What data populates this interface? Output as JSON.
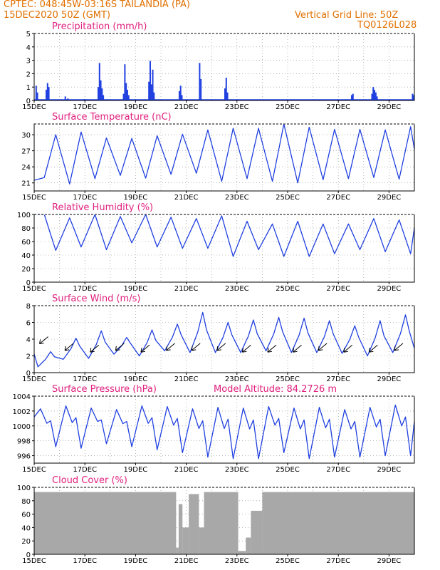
{
  "header": {
    "line1": "CPTEC:   048:45W-03:16S   TAILANDIA (PA)",
    "line2": "15DEC2020 50Z (GMT)",
    "grid_note": "Vertical Grid Line: 50Z",
    "code": "TQ0126L028"
  },
  "colors": {
    "header": "#e07000",
    "title": "#e0207e",
    "series": "#2040e0",
    "cloud": "#a8a8a8"
  },
  "x_labels": [
    "15DEC",
    "17DEC",
    "19DEC",
    "21DEC",
    "23DEC",
    "25DEC",
    "27DEC",
    "29DEC"
  ],
  "panels": {
    "precip": {
      "title": "Precipitation (mm/h)"
    },
    "temp": {
      "title": "Surface Temperature (nC)"
    },
    "rh": {
      "title": "Relative Humidity (%)"
    },
    "wind": {
      "title": "Surface Wind (m/s)"
    },
    "pres": {
      "title": "Surface Pressure (hPa)",
      "extra": "Model Altitude: 84.2726 m"
    },
    "cloud": {
      "title": "Cloud Cover (%)"
    }
  },
  "chart_data": [
    {
      "type": "bar",
      "title": "Precipitation (mm/h)",
      "ylim": [
        0,
        5
      ],
      "y_ticks": [
        0,
        1,
        2,
        3,
        4,
        5
      ],
      "x_range_days": [
        0,
        15
      ],
      "x": [
        0.05,
        0.1,
        0.45,
        0.5,
        0.55,
        1.2,
        1.3,
        1.95,
        2.5,
        2.55,
        2.6,
        2.65,
        2.7,
        3.5,
        3.55,
        3.6,
        3.65,
        3.7,
        4.5,
        4.55,
        4.6,
        4.65,
        4.7,
        5.7,
        5.75,
        5.8,
        6.5,
        6.55,
        7.5,
        7.55,
        7.6,
        12.5,
        12.55,
        13.3,
        13.35,
        13.4,
        13.45,
        13.5,
        14.9,
        14.95
      ],
      "values": [
        1.1,
        0.6,
        0.8,
        1.3,
        1.0,
        0.3,
        0.15,
        0.1,
        1.0,
        2.8,
        1.5,
        0.9,
        0.4,
        0.5,
        2.7,
        1.3,
        0.8,
        0.4,
        1.4,
        2.95,
        1.2,
        2.3,
        0.6,
        0.7,
        1.1,
        0.4,
        2.8,
        1.6,
        0.9,
        1.7,
        0.6,
        0.4,
        0.5,
        0.5,
        1.0,
        0.8,
        0.6,
        0.3,
        0.5,
        0.4
      ]
    },
    {
      "type": "line",
      "title": "Surface Temperature (nC)",
      "ylim": [
        19.5,
        32
      ],
      "y_ticks": [
        21,
        24,
        27,
        30
      ],
      "min": [
        22,
        20.8,
        21.8,
        22.4,
        21.9,
        22.6,
        22.8,
        21.3,
        21.8,
        21.3,
        21.0,
        21.6,
        21.8,
        22.0,
        21.7
      ],
      "max": [
        30.0,
        30.5,
        29.4,
        29.3,
        29.8,
        30.1,
        30.9,
        31.2,
        31.2,
        32.0,
        31.4,
        31.0,
        31.0,
        30.9,
        31.5
      ],
      "end_value": 27.3
    },
    {
      "type": "line",
      "title": "Relative Humidity (%)",
      "ylim": [
        0,
        100
      ],
      "y_ticks": [
        0,
        20,
        40,
        60,
        80,
        100
      ],
      "min": [
        47,
        52,
        48,
        58,
        52,
        50,
        50,
        38,
        48,
        38,
        38,
        42,
        48,
        45,
        42
      ],
      "max": [
        100,
        95,
        100,
        97,
        100,
        96,
        94,
        98,
        90,
        86,
        90,
        86,
        86,
        94,
        92
      ],
      "end_value": 80
    },
    {
      "type": "line",
      "title": "Surface Wind (m/s)",
      "ylim": [
        0,
        8
      ],
      "y_ticks": [
        0,
        2,
        4,
        6,
        8
      ],
      "min": [
        0.7,
        1.6,
        1.7,
        2.2,
        2.0,
        2.6,
        2.4,
        2.4,
        2.4,
        2.6,
        2.4,
        2.4,
        2.3,
        2.0,
        2.4
      ],
      "max": [
        2.5,
        4.1,
        5.0,
        4.2,
        5.1,
        5.8,
        7.2,
        6.0,
        6.3,
        6.6,
        6.5,
        6.2,
        5.6,
        6.2,
        6.9
      ],
      "end_value": 2.9,
      "arrow_y_values": [
        4.3,
        3.5,
        3.3,
        3.5,
        3.3,
        3.5,
        3.5,
        3.5,
        3.3,
        3.3,
        3.3,
        3.5,
        3.3,
        3.3,
        3.5
      ]
    },
    {
      "type": "line",
      "title": "Surface Pressure (hPa)",
      "ylim": [
        995,
        1004
      ],
      "y_ticks": [
        996,
        998,
        1000,
        1002,
        1004
      ],
      "max": [
        1002.3,
        1002.7,
        1002.4,
        1002.2,
        1002.7,
        1002.6,
        1002.3,
        1002.5,
        1002.4,
        1002.6,
        1002.4,
        1002.5,
        1002.2,
        1002.5,
        1002.8
      ],
      "min": [
        997.2,
        997.0,
        997.6,
        997.2,
        996.8,
        996.4,
        995.8,
        995.6,
        995.6,
        996.4,
        995.6,
        995.8,
        995.8,
        996.0,
        996.0
      ],
      "end_value": 1000.6
    },
    {
      "type": "bar",
      "title": "Cloud Cover (%)",
      "ylim": [
        0,
        100
      ],
      "y_ticks": [
        0,
        20,
        40,
        60,
        80,
        100
      ],
      "segments": [
        {
          "from": 0,
          "to": 5.6,
          "value": 93
        },
        {
          "from": 5.6,
          "to": 5.7,
          "value": 10
        },
        {
          "from": 5.7,
          "to": 5.85,
          "value": 75
        },
        {
          "from": 5.85,
          "to": 6.1,
          "value": 40
        },
        {
          "from": 6.1,
          "to": 6.5,
          "value": 90
        },
        {
          "from": 6.5,
          "to": 6.7,
          "value": 40
        },
        {
          "from": 6.7,
          "to": 8.05,
          "value": 93
        },
        {
          "from": 8.05,
          "to": 8.35,
          "value": 5
        },
        {
          "from": 8.35,
          "to": 8.55,
          "value": 25
        },
        {
          "from": 8.55,
          "to": 9.0,
          "value": 65
        },
        {
          "from": 9.0,
          "to": 15,
          "value": 93
        }
      ]
    }
  ]
}
